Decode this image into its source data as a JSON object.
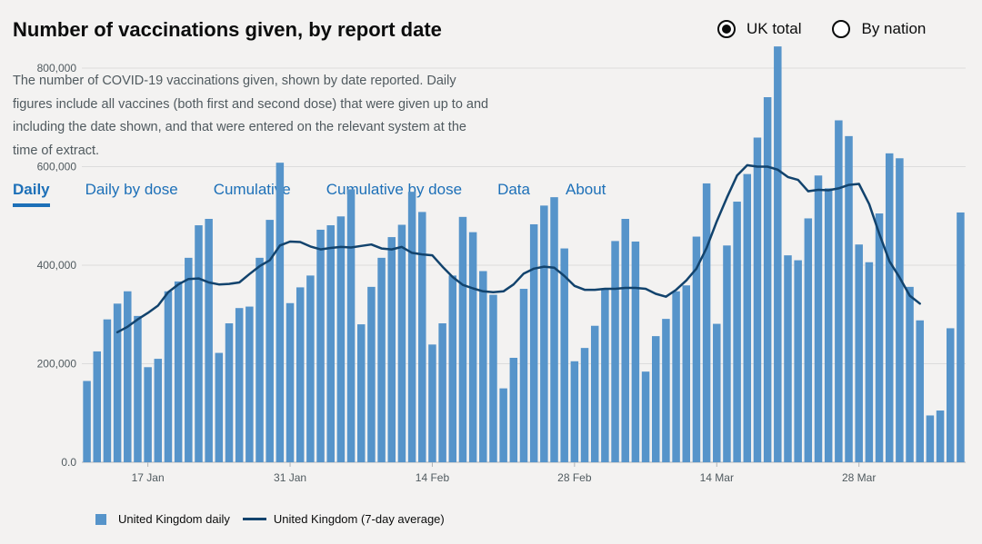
{
  "header": {
    "title": "Number of vaccinations given, by report date",
    "description": "The number of COVID-19 vaccinations given, shown by date reported. Daily figures include all vaccines (both first and second dose) that were given up to and including the date shown, and that were entered on the relevant system at the time of extract."
  },
  "toggle": {
    "options": [
      {
        "label": "UK total",
        "selected": true
      },
      {
        "label": "By nation",
        "selected": false
      }
    ]
  },
  "tabs": [
    {
      "label": "Daily",
      "active": true
    },
    {
      "label": "Daily by dose",
      "active": false
    },
    {
      "label": "Cumulative",
      "active": false
    },
    {
      "label": "Cumulative by dose",
      "active": false
    },
    {
      "label": "Data",
      "active": false
    },
    {
      "label": "About",
      "active": false
    }
  ],
  "colors": {
    "bar": "#5694ca",
    "line": "#12436d",
    "grid": "#dcdcdc",
    "tab": "#1d70b8"
  },
  "chart_data": {
    "type": "bar",
    "ylim": [
      0,
      850000
    ],
    "yticks": [
      0,
      200000,
      400000,
      600000,
      800000
    ],
    "ytick_labels": [
      "0.0",
      "200,000",
      "400,000",
      "600,000",
      "800,000"
    ],
    "xtick_labels": [
      {
        "index": 6,
        "label": "17 Jan"
      },
      {
        "index": 20,
        "label": "31 Jan"
      },
      {
        "index": 34,
        "label": "14 Feb"
      },
      {
        "index": 48,
        "label": "28 Feb"
      },
      {
        "index": 62,
        "label": "14 Mar"
      },
      {
        "index": 76,
        "label": "28 Mar"
      }
    ],
    "series": [
      {
        "name": "United Kingdom daily",
        "type": "bar",
        "values": [
          165000,
          225000,
          290000,
          322000,
          347000,
          297000,
          193000,
          210000,
          347000,
          367000,
          415000,
          481000,
          494000,
          222000,
          282000,
          313000,
          316000,
          415000,
          492000,
          608000,
          323000,
          355000,
          379000,
          472000,
          481000,
          499000,
          554000,
          280000,
          356000,
          415000,
          457000,
          482000,
          549000,
          508000,
          239000,
          282000,
          379000,
          498000,
          467000,
          388000,
          340000,
          150000,
          212000,
          352000,
          483000,
          521000,
          538000,
          434000,
          205000,
          232000,
          277000,
          353000,
          449000,
          494000,
          448000,
          184000,
          256000,
          291000,
          347000,
          359000,
          458000,
          566000,
          281000,
          440000,
          529000,
          585000,
          659000,
          741000,
          844000,
          420000,
          410000,
          495000,
          582000,
          556000,
          694000,
          662000,
          442000,
          406000,
          505000,
          627000,
          617000,
          356000,
          288000,
          95000,
          105000,
          272000,
          507000
        ]
      },
      {
        "name": "United Kingdom (7-day average)",
        "type": "line",
        "start_index": 3,
        "values": [
          264000,
          275000,
          290000,
          303000,
          318000,
          345000,
          361000,
          372000,
          373000,
          365000,
          361000,
          362000,
          365000,
          382000,
          398000,
          410000,
          440000,
          448000,
          447000,
          438000,
          432000,
          435000,
          437000,
          436000,
          439000,
          442000,
          434000,
          432000,
          437000,
          425000,
          422000,
          420000,
          397000,
          376000,
          360000,
          353000,
          347000,
          345000,
          347000,
          361000,
          383000,
          393000,
          397000,
          395000,
          378000,
          358000,
          350000,
          350000,
          352000,
          352000,
          354000,
          354000,
          352000,
          342000,
          336000,
          350000,
          369000,
          393000,
          435000,
          489000,
          537000,
          582000,
          603000,
          600000,
          600000,
          594000,
          579000,
          573000,
          550000,
          553000,
          552000,
          556000,
          563000,
          565000,
          524000,
          464000,
          408000,
          375000,
          338000,
          322000
        ]
      }
    ],
    "legend": "bottom-left"
  }
}
